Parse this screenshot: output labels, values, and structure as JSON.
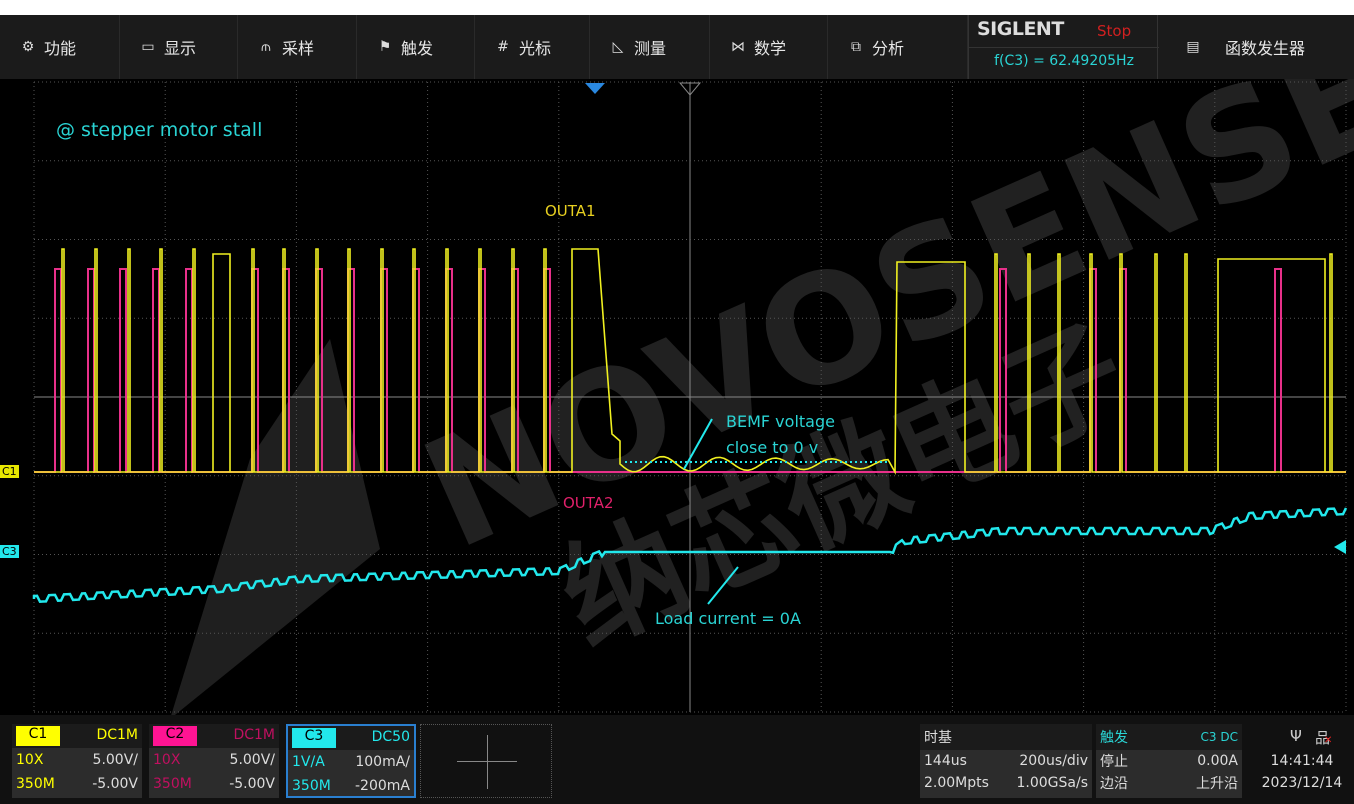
{
  "menu": [
    {
      "icon": "gear-icon",
      "glyph": "⚙",
      "label": "功能"
    },
    {
      "icon": "display-icon",
      "glyph": "▭",
      "label": "显示"
    },
    {
      "icon": "acquire-icon",
      "glyph": "⫙",
      "label": "采样"
    },
    {
      "icon": "flag-icon",
      "glyph": "⚑",
      "label": "触发"
    },
    {
      "icon": "cursor-grid-icon",
      "glyph": "#",
      "label": "光标"
    },
    {
      "icon": "measure-icon",
      "glyph": "◺",
      "label": "测量"
    },
    {
      "icon": "math-icon",
      "glyph": "⋈",
      "label": "数学"
    },
    {
      "icon": "analysis-icon",
      "glyph": "⧉",
      "label": "分析"
    }
  ],
  "brand": {
    "logo": "SIGLENT",
    "status": "Stop",
    "frequency": "f(C3) = 62.49205Hz"
  },
  "func_gen": {
    "icon": "clipboard-icon",
    "glyph": "▤",
    "label": "函数发生器"
  },
  "annotations": {
    "title": "@ stepper motor stall",
    "outa1": "OUTA1",
    "outa2": "OUTA2",
    "bemf1": "BEMF voltage",
    "bemf2": "close to 0  v",
    "load": "Load current = 0A"
  },
  "markers": {
    "c1": "C1",
    "c3": "C3"
  },
  "watermark": {
    "en": "NOVOSENSE",
    "cn": "纳芯微电子"
  },
  "channels": [
    {
      "name": "C1",
      "coupling": "DC1M",
      "probe": "10X",
      "scale": "5.00V/",
      "bw": "350M",
      "offset": "-5.00V",
      "color": "#ffff00",
      "active": false
    },
    {
      "name": "C2",
      "coupling": "DC1M",
      "probe": "10X",
      "scale": "5.00V/",
      "bw": "350M",
      "offset": "-5.00V",
      "color": "#ff1493",
      "active": false
    },
    {
      "name": "C3",
      "coupling": "DC50",
      "probe": "1V/A",
      "scale": "100mA/",
      "bw": "350M",
      "offset": "-200mA",
      "color": "#22e8ec",
      "active": true
    }
  ],
  "timebase": {
    "title": "时基",
    "delay": "144us",
    "scale": "200us/div",
    "points": "2.00Mpts",
    "rate": "1.00GSa/s"
  },
  "trigger": {
    "title": "触发",
    "source": "C3 DC",
    "state": "停止",
    "level": "0.00A",
    "type": "边沿",
    "slope": "上升沿"
  },
  "status": {
    "time": "14:41:44",
    "date": "2023/12/14"
  }
}
